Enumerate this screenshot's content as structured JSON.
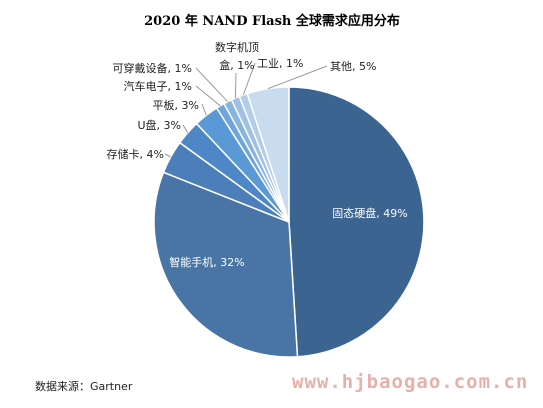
{
  "chart_data": {
    "type": "pie",
    "title": "2020 年 NAND Flash 全球需求应用分布",
    "slices": [
      {
        "label": "固态硬盘, 49%",
        "value": 49,
        "color": "#3b6491"
      },
      {
        "label": "智能手机, 32%",
        "value": 32,
        "color": "#4875a6"
      },
      {
        "label": "存储卡, 4%",
        "value": 4,
        "color": "#4c7fb9"
      },
      {
        "label": "U盘, 3%",
        "value": 3,
        "color": "#4d87c7"
      },
      {
        "label": "平板, 3%",
        "value": 3,
        "color": "#5b98d6"
      },
      {
        "label": "汽车电子, 1%",
        "value": 1,
        "color": "#6fa5dc"
      },
      {
        "label": "可穿戴设备, 1%",
        "value": 1,
        "color": "#89b4e2"
      },
      {
        "label": "数字机顶盒, 1%",
        "value": 1,
        "color": "#9fc1e6"
      },
      {
        "label": "工业, 1%",
        "value": 1,
        "color": "#b3cde9"
      },
      {
        "label": "其他, 5%",
        "value": 5,
        "color": "#c9dbef"
      }
    ]
  },
  "source": "数据来源：Gartner",
  "watermark": "www.hjbaogao.com.cn"
}
